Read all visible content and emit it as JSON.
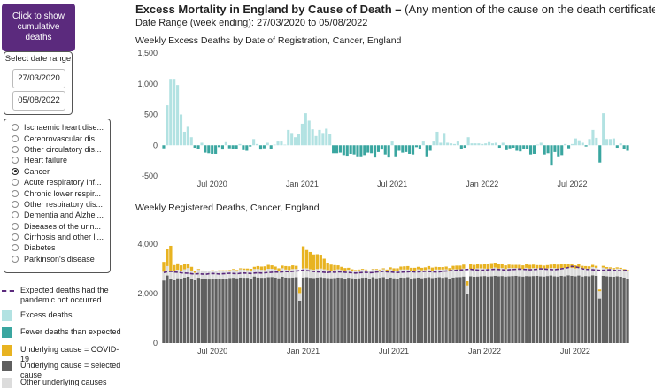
{
  "sidebar": {
    "cumulative_button": "Click to show cumulative deaths",
    "date_range_label": "Select date range",
    "date_from": "27/03/2020",
    "date_to": "05/08/2022",
    "causes": [
      {
        "label": "Ischaemic heart dise...",
        "selected": false
      },
      {
        "label": "Cerebrovascular dis...",
        "selected": false
      },
      {
        "label": "Other circulatory dis...",
        "selected": false
      },
      {
        "label": "Heart failure",
        "selected": false
      },
      {
        "label": "Cancer",
        "selected": true
      },
      {
        "label": "Acute respiratory inf...",
        "selected": false
      },
      {
        "label": "Chronic lower respir...",
        "selected": false
      },
      {
        "label": "Other respiratory dis...",
        "selected": false
      },
      {
        "label": "Dementia and Alzhei...",
        "selected": false
      },
      {
        "label": "Diseases of the urin...",
        "selected": false
      },
      {
        "label": "Cirrhosis and other li...",
        "selected": false
      },
      {
        "label": "Diabetes",
        "selected": false
      },
      {
        "label": "Parkinson's disease",
        "selected": false
      }
    ]
  },
  "legend": {
    "expected": "Expected deaths had the pandemic not occurred",
    "excess": "Excess deaths",
    "fewer": "Fewer deaths than expected",
    "covid": "Underlying cause  = COVID-19",
    "selected": "Underlying cause = selected cause",
    "other": "Other underlying causes"
  },
  "colors": {
    "excess": "#b2e2e2",
    "fewer": "#3aa6a0",
    "covid": "#e8b321",
    "selected": "#5f5f5f",
    "other": "#dcdcdc",
    "expected": "#5b2a7d",
    "button": "#5b2a7d"
  },
  "header": {
    "title_bold": "Excess Mortality in England by Cause of Death –",
    "title_rest": " (Any mention of the cause on the death certificate)",
    "date_range": "Date Range (week ending): 27/03/2020 to 05/08/2022"
  },
  "chart_data": [
    {
      "type": "bar",
      "title": "Weekly Excess Deaths by Date of Registration, Cancer, England",
      "ylim": [
        -500,
        1500
      ],
      "yticks": [
        "1,500",
        "1,000",
        "500",
        "0",
        "-500"
      ],
      "ytick_values": [
        1500,
        1000,
        500,
        0,
        -500
      ],
      "xticks": [
        "Jul 2020",
        "Jan 2021",
        "Jul 2021",
        "Jan 2022",
        "Jul 2022"
      ],
      "xtick_weeks": [
        14,
        40,
        66,
        92,
        118
      ],
      "values": [
        -50,
        650,
        1080,
        1080,
        980,
        500,
        220,
        300,
        130,
        -40,
        -60,
        40,
        -120,
        -130,
        -140,
        -140,
        -30,
        -70,
        50,
        -50,
        -60,
        -60,
        20,
        -80,
        -90,
        -20,
        100,
        20,
        -70,
        -50,
        40,
        -60,
        10,
        60,
        60,
        10,
        250,
        200,
        130,
        190,
        350,
        520,
        400,
        260,
        150,
        250,
        200,
        270,
        190,
        -130,
        -130,
        -120,
        -160,
        -170,
        -140,
        -150,
        -180,
        -180,
        -160,
        -120,
        -130,
        -200,
        -110,
        -70,
        -150,
        -200,
        60,
        -180,
        -90,
        -120,
        -110,
        -140,
        -150,
        -30,
        -60,
        60,
        -180,
        -90,
        60,
        220,
        40,
        200,
        40,
        30,
        20,
        60,
        -60,
        -40,
        130,
        30,
        30,
        30,
        20,
        30,
        50,
        30,
        40,
        -40,
        40,
        -80,
        -50,
        -40,
        -90,
        -100,
        -60,
        -60,
        -150,
        -140,
        10,
        40,
        -150,
        -130,
        -330,
        -110,
        -180,
        -160,
        20,
        -50,
        20,
        110,
        80,
        40,
        -20,
        100,
        250,
        120,
        -280,
        520,
        100,
        100,
        110,
        -40,
        30,
        -60,
        -90
      ]
    },
    {
      "type": "bar",
      "stacked": true,
      "title": "Weekly Registered Deaths, Cancer, England",
      "ylim": [
        0,
        4000
      ],
      "yticks": [
        "4,000",
        "2,000",
        "0"
      ],
      "ytick_values": [
        4000,
        2000,
        0
      ],
      "xticks": [
        "Jul 2020",
        "Jan 2021",
        "Jul 2021",
        "Jan 2022",
        "Jul 2022"
      ],
      "xtick_weeks": [
        14,
        40,
        66,
        92,
        118
      ],
      "series_selected": [
        2530,
        2730,
        2600,
        2540,
        2620,
        2600,
        2650,
        2680,
        2600,
        2540,
        2640,
        2580,
        2590,
        2570,
        2610,
        2590,
        2610,
        2600,
        2600,
        2630,
        2640,
        2620,
        2650,
        2640,
        2640,
        2600,
        2690,
        2650,
        2640,
        2640,
        2660,
        2670,
        2650,
        2620,
        2680,
        2650,
        2640,
        2650,
        2660,
        1720,
        2650,
        2660,
        2640,
        2630,
        2650,
        2660,
        2640,
        2630,
        2620,
        2630,
        2650,
        2640,
        2600,
        2640,
        2620,
        2600,
        2620,
        2640,
        2650,
        2600,
        2660,
        2620,
        2640,
        2660,
        2600,
        2650,
        2620,
        2610,
        2650,
        2640,
        2660,
        2600,
        2630,
        2650,
        2620,
        2640,
        2660,
        2630,
        2650,
        2660,
        2640,
        2660,
        2600,
        2650,
        2660,
        2670,
        2690,
        2000,
        2700,
        2680,
        2690,
        2700,
        2710,
        2690,
        2700,
        2720,
        2700,
        2710,
        2690,
        2700,
        2710,
        2720,
        2700,
        2690,
        2710,
        2700,
        2710,
        2720,
        2700,
        2690,
        2710,
        2730,
        2700,
        2690,
        2720,
        2700,
        2740,
        2720,
        2700,
        2730,
        2690,
        2710,
        2700,
        2740,
        2720,
        1800,
        2720,
        2700,
        2690,
        2680,
        2700,
        2680,
        2650,
        2600
      ],
      "series_other": [
        350,
        380,
        330,
        360,
        340,
        320,
        330,
        350,
        330,
        300,
        320,
        330,
        310,
        330,
        320,
        310,
        320,
        330,
        320,
        300,
        320,
        300,
        330,
        320,
        310,
        330,
        300,
        340,
        320,
        310,
        340,
        330,
        320,
        300,
        340,
        320,
        310,
        340,
        330,
        300,
        360,
        360,
        340,
        330,
        340,
        350,
        340,
        320,
        310,
        320,
        330,
        310,
        330,
        320,
        300,
        310,
        320,
        330,
        300,
        310,
        320,
        340,
        300,
        320,
        310,
        330,
        310,
        300,
        320,
        330,
        310,
        320,
        300,
        330,
        320,
        310,
        330,
        300,
        320,
        310,
        330,
        320,
        300,
        330,
        320,
        310,
        320,
        330,
        300,
        310,
        330,
        320,
        300,
        310,
        320,
        330,
        310,
        320,
        300,
        330,
        320,
        310,
        320,
        300,
        330,
        310,
        320,
        300,
        330,
        320,
        310,
        300,
        330,
        320,
        310,
        330,
        300,
        320,
        310,
        330,
        320,
        300,
        310,
        330,
        320,
        300,
        330,
        310,
        320,
        300,
        310,
        320,
        300,
        310
      ],
      "series_covid": [
        400,
        700,
        1000,
        250,
        260,
        220,
        200,
        180,
        150,
        60,
        30,
        20,
        10,
        10,
        10,
        10,
        10,
        10,
        20,
        20,
        30,
        30,
        40,
        50,
        60,
        70,
        90,
        120,
        130,
        150,
        160,
        140,
        120,
        100,
        110,
        140,
        150,
        150,
        130,
        220,
        900,
        740,
        700,
        620,
        600,
        560,
        430,
        300,
        240,
        200,
        160,
        130,
        100,
        80,
        60,
        40,
        30,
        30,
        20,
        20,
        20,
        30,
        30,
        40,
        60,
        80,
        90,
        110,
        120,
        130,
        140,
        120,
        110,
        100,
        100,
        110,
        120,
        120,
        110,
        100,
        100,
        110,
        130,
        140,
        150,
        150,
        160,
        170,
        180,
        170,
        160,
        150,
        180,
        200,
        210,
        200,
        180,
        160,
        150,
        140,
        130,
        130,
        140,
        150,
        160,
        150,
        140,
        130,
        120,
        120,
        130,
        140,
        150,
        160,
        170,
        160,
        150,
        140,
        130,
        120,
        110,
        100,
        90,
        90,
        80,
        70,
        70,
        60,
        50,
        50,
        50,
        40,
        40,
        40
      ],
      "expected": [
        2850,
        2880,
        2900,
        2870,
        2860,
        2840,
        2830,
        2820,
        2800,
        2790,
        2800,
        2790,
        2780,
        2800,
        2810,
        2800,
        2790,
        2800,
        2810,
        2820,
        2810,
        2800,
        2820,
        2830,
        2820,
        2810,
        2830,
        2840,
        2830,
        2840,
        2850,
        2860,
        2870,
        2860,
        2880,
        2890,
        2880,
        2900,
        2910,
        2920,
        2950,
        2930,
        2910,
        2890,
        2880,
        2870,
        2860,
        2850,
        2870,
        2860,
        2880,
        2870,
        2860,
        2850,
        2840,
        2830,
        2840,
        2850,
        2860,
        2840,
        2850,
        2870,
        2880,
        2900,
        2880,
        2870,
        2860,
        2850,
        2860,
        2870,
        2880,
        2890,
        2870,
        2880,
        2890,
        2900,
        2890,
        2880,
        2870,
        2880,
        2900,
        2910,
        2920,
        2930,
        2940,
        2950,
        2960,
        2970,
        2980,
        2960,
        2950,
        2940,
        2950,
        2960,
        2970,
        2980,
        2970,
        2960,
        2950,
        2960,
        2970,
        2980,
        2990,
        2980,
        2970,
        2960,
        2970,
        2980,
        3000,
        2990,
        2980,
        2970,
        2960,
        2980,
        3000,
        3020,
        3050,
        3100,
        3080,
        3050,
        3000,
        2980,
        2970,
        2960,
        2950,
        2940,
        2940,
        2950,
        2960,
        2940,
        2930,
        2920,
        2930,
        2950
      ]
    }
  ]
}
